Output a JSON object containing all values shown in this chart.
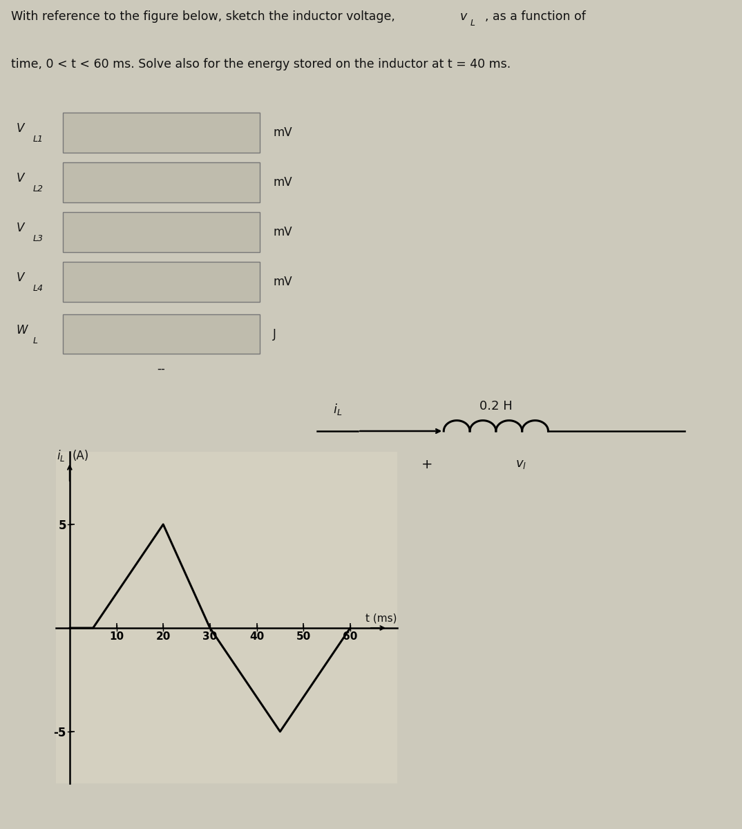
{
  "title_line1": "With reference to the figure below, sketch the inductor voltage, v",
  "title_line1_sub": "L",
  "title_line1_end": ", as a function of",
  "title_line2": "time, 0 < t < 60 ms. Solve also for the energy stored on the inductor at t = 40 ms.",
  "background_color": "#ccc9bb",
  "text_color": "#111111",
  "labels": [
    {
      "label": "V",
      "sub": "L1",
      "unit": "mV"
    },
    {
      "label": "V",
      "sub": "L2",
      "unit": "mV"
    },
    {
      "label": "V",
      "sub": "L3",
      "unit": "mV"
    },
    {
      "label": "V",
      "sub": "L4",
      "unit": "mV"
    },
    {
      "label": "W",
      "sub": "L",
      "unit": "J"
    }
  ],
  "dash_text": "--",
  "graph_ylabel": "i",
  "graph_ylabel_sub": "L",
  "graph_ylabel_unit": " (A)",
  "graph_xlabel": "t (ms)",
  "inductor_label": "0.2 H",
  "current_label_main": "i",
  "current_label_sub": "L",
  "vl_label_main": "v",
  "vl_label_sub": "l",
  "iL_t": [
    0,
    5,
    20,
    30,
    45,
    60
  ],
  "iL_vals": [
    0,
    0,
    5,
    0,
    -5,
    0
  ],
  "yticks": [
    -5,
    5
  ],
  "xticks": [
    10,
    20,
    30,
    40,
    50,
    60
  ],
  "ylim": [
    -7.5,
    8.5
  ],
  "xlim": [
    -3,
    70
  ],
  "box_facecolor": "#bfbcad",
  "box_edgecolor": "#777777",
  "graph_bg": "#d4d0c0",
  "graph_line_color": "#000000",
  "graph_linewidth": 2.2
}
